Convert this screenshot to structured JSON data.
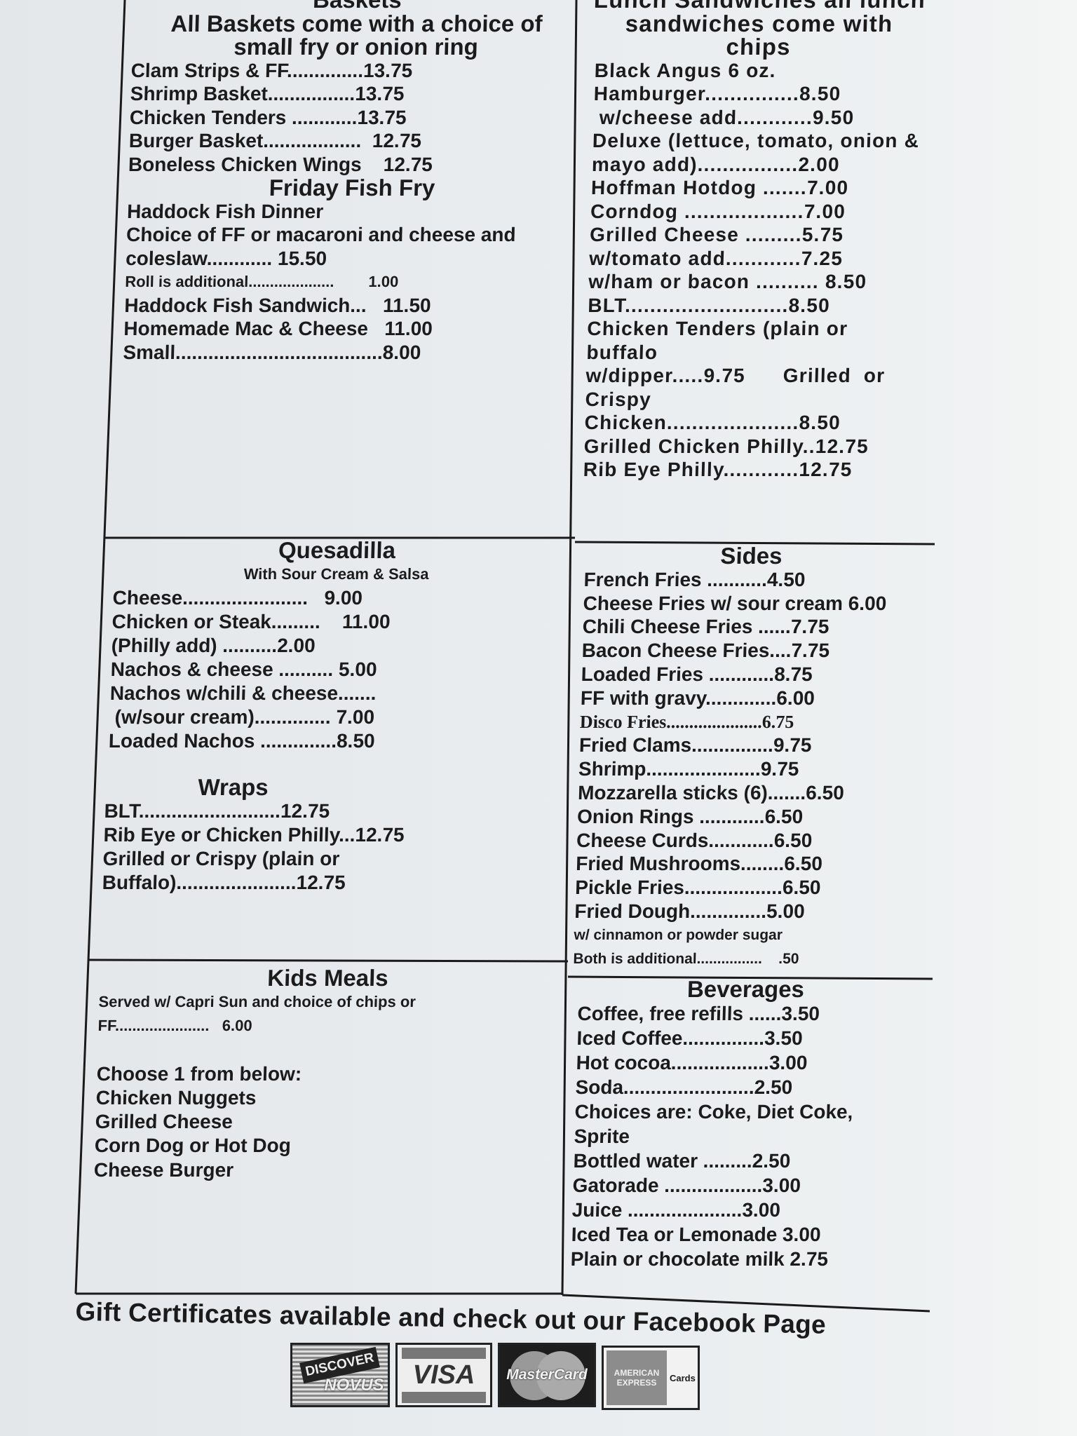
{
  "sections": [
    {
      "id": "baskets",
      "lines": [
        {
          "t": "Baskets",
          "k": "hd"
        },
        {
          "t": "All Baskets come with a choice of",
          "k": "hd"
        },
        {
          "t": "small fry or onion ring",
          "k": "hd"
        },
        {
          "t": "Clam Strips & FF..............13.75"
        },
        {
          "t": "Shrimp Basket................13.75"
        },
        {
          "t": "Chicken Tenders ............13.75"
        },
        {
          "t": "Burger Basket..................  12.75"
        },
        {
          "t": "Boneless Chicken Wings    12.75"
        },
        {
          "t": "Friday Fish Fry",
          "k": "hd"
        },
        {
          "t": "Haddock Fish Dinner"
        },
        {
          "t": "Choice of FF or macaroni and cheese and"
        },
        {
          "t": "coleslaw............ 15.50"
        },
        {
          "t": "Roll is additional....................        1.00",
          "k": "sm"
        },
        {
          "t": "Haddock Fish Sandwich...   11.50"
        },
        {
          "t": "Homemade Mac & Cheese   11.00"
        },
        {
          "t": "Small......................................8.00"
        }
      ]
    },
    {
      "id": "lunch-sandwiches",
      "lines": [
        {
          "t": "Lunch Sandwiches all lunch",
          "k": "hd"
        },
        {
          "t": "sandwiches come with",
          "k": "hd"
        },
        {
          "t": "chips",
          "k": "hd"
        },
        {
          "t": "Black Angus 6 oz."
        },
        {
          "t": "Hamburger...............8.50"
        },
        {
          "t": " w/cheese add............9.50"
        },
        {
          "t": "Deluxe (lettuce, tomato, onion &"
        },
        {
          "t": "mayo add)................2.00"
        },
        {
          "t": "Hoffman Hotdog .......7.00"
        },
        {
          "t": "Corndog ...................7.00"
        },
        {
          "t": "Grilled Cheese .........5.75"
        },
        {
          "t": "w/tomato add............7.25"
        },
        {
          "t": "w/ham or bacon .......... 8.50"
        },
        {
          "t": "BLT..........................8.50"
        },
        {
          "t": "Chicken Tenders (plain or"
        },
        {
          "t": "buffalo"
        },
        {
          "t": "w/dipper.....9.75      Grilled  or"
        },
        {
          "t": "Crispy"
        },
        {
          "t": "Chicken.....................8.50"
        },
        {
          "t": "Grilled Chicken Philly..12.75"
        },
        {
          "t": "Rib Eye Philly............12.75"
        }
      ]
    },
    {
      "id": "quesadilla",
      "lines": [
        {
          "t": "Quesadilla",
          "k": "hd"
        },
        {
          "t": "With Sour Cream & Salsa",
          "k": "hd sm"
        },
        {
          "t": "Cheese.......................   9.00"
        },
        {
          "t": "Chicken or Steak.........    11.00"
        },
        {
          "t": "(Philly add) ..........2.00"
        },
        {
          "t": "Nachos & cheese .......... 5.00"
        },
        {
          "t": "Nachos w/chili & cheese......."
        },
        {
          "t": " (w/sour cream).............. 7.00"
        },
        {
          "t": "Loaded Nachos ..............8.50"
        }
      ]
    },
    {
      "id": "wraps",
      "lines": [
        {
          "t": "Wraps",
          "k": "hd"
        },
        {
          "t": "BLT..........................12.75"
        },
        {
          "t": "Rib Eye or Chicken Philly...12.75"
        },
        {
          "t": "Grilled or Crispy (plain or"
        },
        {
          "t": "Buffalo)......................12.75"
        }
      ]
    },
    {
      "id": "sides",
      "lines": [
        {
          "t": "Sides",
          "k": "hd"
        },
        {
          "t": "French Fries ...........4.50"
        },
        {
          "t": "Cheese Fries w/ sour cream 6.00"
        },
        {
          "t": "Chili Cheese Fries ......7.75"
        },
        {
          "t": "Bacon Cheese Fries....7.75"
        },
        {
          "t": "Loaded Fries ............8.75"
        },
        {
          "t": "FF with gravy.............6.00"
        },
        {
          "t": "Disco Fries.....................6.75",
          "k": "serif"
        },
        {
          "t": "Fried Clams...............9.75"
        },
        {
          "t": "Shrimp.....................9.75"
        },
        {
          "t": "Mozzarella sticks (6).......6.50"
        },
        {
          "t": "Onion Rings ............6.50"
        },
        {
          "t": "Cheese Curds............6.50"
        },
        {
          "t": "Fried Mushrooms........6.50"
        },
        {
          "t": "Pickle Fries..................6.50"
        },
        {
          "t": "Fried Dough..............5.00"
        },
        {
          "t": "w/ cinnamon or powder sugar",
          "k": "xs"
        },
        {
          "t": "Both is additional................    .50",
          "k": "xs"
        }
      ]
    },
    {
      "id": "kids-meals",
      "lines": [
        {
          "t": "Kids Meals",
          "k": "hd"
        },
        {
          "t": "Served w/ Capri Sun and choice of chips or",
          "k": "sm"
        },
        {
          "t": "FF......................   6.00",
          "k": "sm"
        },
        {
          "t": " "
        },
        {
          "t": "Choose 1 from below:"
        },
        {
          "t": "Chicken Nuggets"
        },
        {
          "t": "Grilled Cheese"
        },
        {
          "t": "Corn Dog or Hot Dog"
        },
        {
          "t": "Cheese Burger"
        }
      ]
    },
    {
      "id": "beverages",
      "lines": [
        {
          "t": "Beverages",
          "k": "hd"
        },
        {
          "t": "Coffee, free refills ......3.50"
        },
        {
          "t": "Iced Coffee...............3.50"
        },
        {
          "t": "Hot cocoa..................3.00"
        },
        {
          "t": "Soda........................2.50"
        },
        {
          "t": "Choices are: Coke, Diet Coke,"
        },
        {
          "t": "Sprite"
        },
        {
          "t": "Bottled water .........2.50"
        },
        {
          "t": "Gatorade ..................3.00"
        },
        {
          "t": "Juice .....................3.00"
        },
        {
          "t": "Iced Tea or Lemonade 3.00"
        },
        {
          "t": "Plain or chocolate milk 2.75"
        }
      ]
    }
  ],
  "footer": {
    "text": "Gift Certificates available and check out our Facebook Page"
  },
  "payment_cards": {
    "discover": {
      "top": "DISCOVER",
      "bottom": "NOVUS"
    },
    "visa": {
      "name": "VISA"
    },
    "mastercard": {
      "name": "MasterCard"
    },
    "amex": {
      "line1": "AMERICAN",
      "line2": "EXPRESS",
      "suffix": "Cards"
    }
  }
}
